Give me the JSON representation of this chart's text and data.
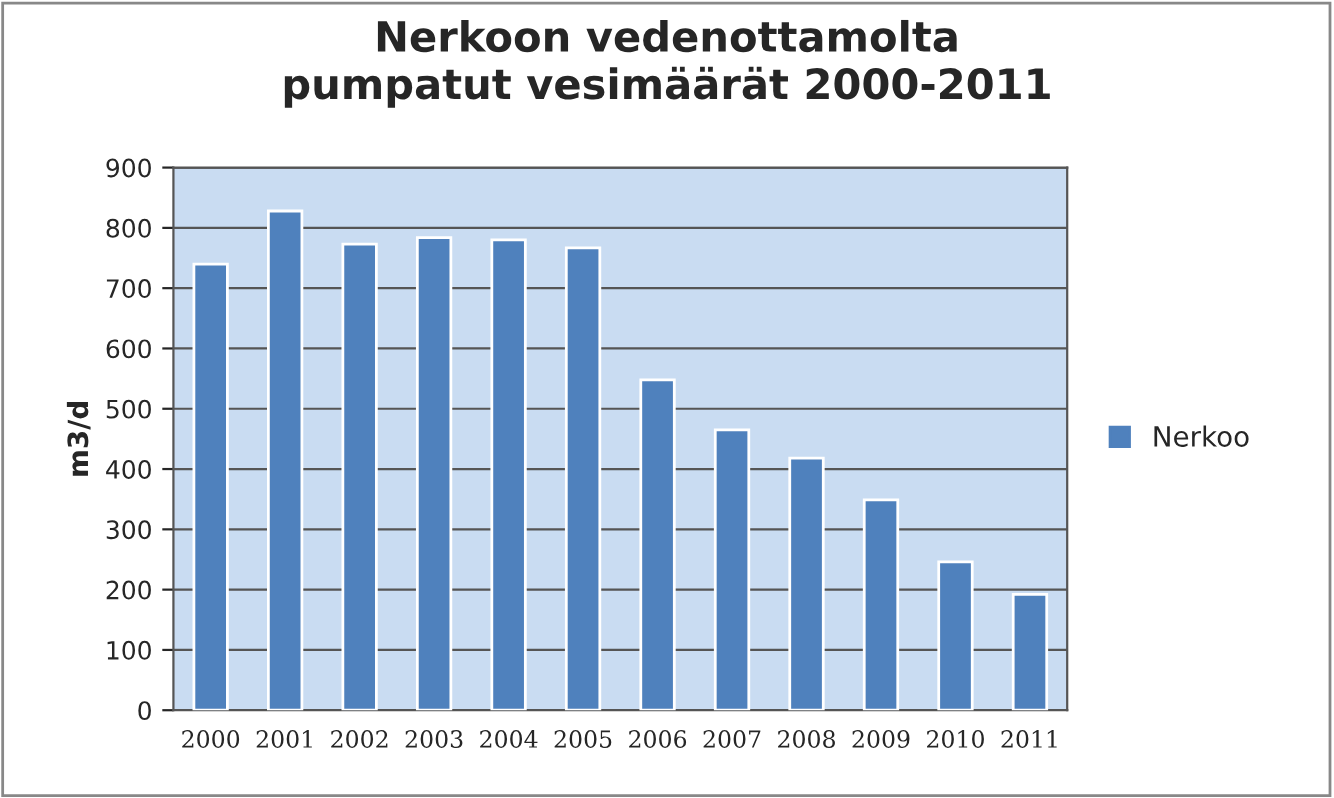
{
  "chart_data": {
    "type": "bar",
    "title": "Nerkoon vedenottamolta\npumpatut vesimäärät 2000-2011",
    "ylabel": "m3/d",
    "categories": [
      "2000",
      "2001",
      "2002",
      "2003",
      "2004",
      "2005",
      "2006",
      "2007",
      "2008",
      "2009",
      "2010",
      "2011"
    ],
    "series": [
      {
        "name": "Nerkoo",
        "color": "#4f81bd",
        "values": [
          740,
          828,
          773,
          784,
          780,
          767,
          548,
          465,
          418,
          349,
          246,
          192
        ]
      }
    ],
    "ylim": [
      0,
      900
    ],
    "yticks": [
      0,
      100,
      200,
      300,
      400,
      500,
      600,
      700,
      800,
      900
    ],
    "grid": "y",
    "legend": "right"
  }
}
